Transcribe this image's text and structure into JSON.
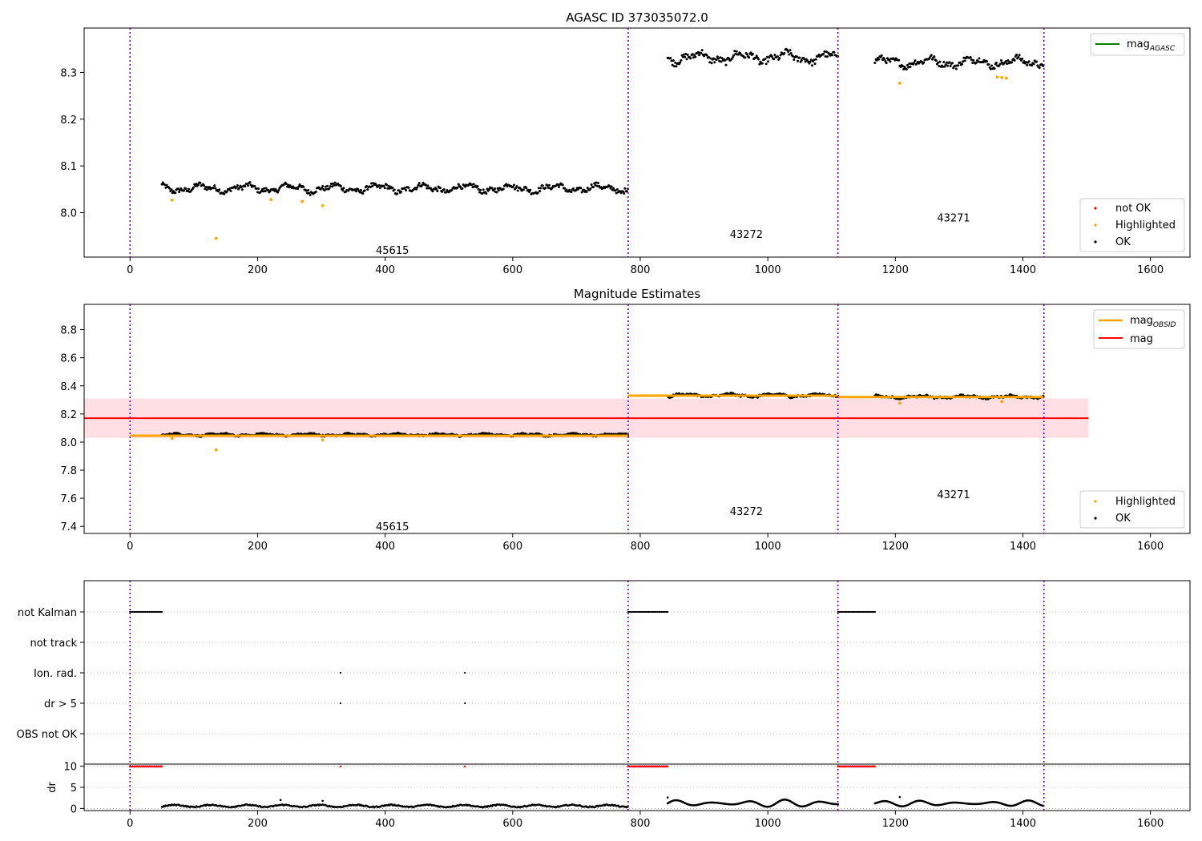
{
  "chart_data": [
    {
      "type": "scatter",
      "title": "AGASC ID 373035072.0",
      "xlabel": "",
      "ylabel": "",
      "xlim": [
        -72,
        1662
      ],
      "ylim": [
        7.905,
        8.395
      ],
      "xticks": [
        0,
        200,
        400,
        600,
        800,
        1000,
        1200,
        1400,
        1600
      ],
      "yticks": [
        8.0,
        8.1,
        8.2,
        8.3
      ],
      "grid": false,
      "vlines": [
        0,
        781,
        1110,
        1433
      ],
      "obsid_labels": [
        {
          "text": "45615",
          "x": 390,
          "y": 7.92
        },
        {
          "text": "43272",
          "x": 945,
          "y": 7.955
        },
        {
          "text": "43271",
          "x": 1270,
          "y": 7.99
        }
      ],
      "series": [
        {
          "name": "mag_AGASC",
          "color": "#008000",
          "kind": "line",
          "values": []
        },
        {
          "name": "not OK",
          "color": "#ff0000",
          "kind": "points",
          "values": []
        },
        {
          "name": "Highlighted",
          "color": "#ffa500",
          "kind": "points",
          "values": [
            [
              66,
              8.027
            ],
            [
              135,
              7.945
            ],
            [
              221,
              8.028
            ],
            [
              270,
              8.024
            ],
            [
              302,
              8.015
            ],
            [
              1207,
              8.277
            ],
            [
              1360,
              8.29
            ],
            [
              1367,
              8.289
            ],
            [
              1374,
              8.288
            ]
          ]
        },
        {
          "name": "OK",
          "color": "#000000",
          "kind": "points",
          "segments": [
            {
              "x0": 50,
              "x1": 781,
              "base": 8.052,
              "amp": 0.011
            },
            {
              "x0": 843,
              "x1": 1110,
              "base": 8.332,
              "amp": 0.015
            },
            {
              "x0": 1168,
              "x1": 1433,
              "base": 8.322,
              "amp": 0.013
            }
          ]
        }
      ],
      "legend_top": {
        "loc": "upper right",
        "entries": [
          "mag_AGASC"
        ]
      },
      "legend_bottom": {
        "loc": "lower right",
        "entries": [
          "not OK",
          "Highlighted",
          "OK"
        ]
      }
    },
    {
      "type": "scatter",
      "title": "Magnitude Estimates",
      "xlabel": "",
      "ylabel": "",
      "xlim": [
        -72,
        1662
      ],
      "ylim": [
        7.35,
        8.98
      ],
      "xticks": [
        0,
        200,
        400,
        600,
        800,
        1000,
        1200,
        1400,
        1600
      ],
      "yticks": [
        7.4,
        7.6,
        7.8,
        8.0,
        8.2,
        8.4,
        8.6,
        8.8
      ],
      "grid": false,
      "vlines": [
        0,
        781,
        1110,
        1433
      ],
      "mag": {
        "value": 8.17,
        "band": [
          8.03,
          8.31
        ],
        "x_range": [
          0,
          1503
        ],
        "color": "#ff0000"
      },
      "mag_obsid": [
        {
          "x0": 0,
          "x1": 781,
          "y": 8.045
        },
        {
          "x0": 781,
          "x1": 1110,
          "y": 8.33
        },
        {
          "x0": 1110,
          "x1": 1433,
          "y": 8.32
        }
      ],
      "obsid_labels": [
        {
          "text": "45615",
          "x": 390,
          "y": 7.4
        },
        {
          "text": "43272",
          "x": 945,
          "y": 7.51
        },
        {
          "text": "43271",
          "x": 1270,
          "y": 7.63
        }
      ],
      "series": [
        {
          "name": "mag_OBSID",
          "color": "#ffa500",
          "kind": "line"
        },
        {
          "name": "mag",
          "color": "#ff0000",
          "kind": "line"
        },
        {
          "name": "Highlighted",
          "color": "#ffa500",
          "kind": "points",
          "values": [
            [
              66,
              8.027
            ],
            [
              135,
              7.945
            ],
            [
              302,
              8.015
            ],
            [
              1207,
              8.277
            ],
            [
              1367,
              8.289
            ]
          ]
        },
        {
          "name": "OK",
          "color": "#000000",
          "kind": "points",
          "segments": [
            {
              "x0": 50,
              "x1": 781,
              "base": 8.052,
              "amp": 0.011
            },
            {
              "x0": 843,
              "x1": 1110,
              "base": 8.332,
              "amp": 0.015
            },
            {
              "x0": 1168,
              "x1": 1433,
              "base": 8.322,
              "amp": 0.013
            }
          ]
        }
      ],
      "legend_top": {
        "loc": "upper right",
        "entries": [
          "mag_OBSID",
          "mag"
        ]
      },
      "legend_bottom": {
        "loc": "lower right",
        "entries": [
          "Highlighted",
          "OK"
        ]
      }
    },
    {
      "type": "scatter",
      "title": "",
      "xlim": [
        -72,
        1662
      ],
      "xticks": [
        0,
        200,
        400,
        600,
        800,
        1000,
        1200,
        1400,
        1600
      ],
      "vlines": [
        0,
        781,
        1110,
        1433
      ],
      "flag_rows": [
        "not Kalman",
        "not track",
        "Ion. rad.",
        "dr > 5",
        "OBS not OK"
      ],
      "flags": {
        "not Kalman": [
          [
            0,
            50
          ],
          [
            781,
            843
          ],
          [
            1110,
            1168
          ]
        ],
        "not track": [],
        "Ion. rad.": [
          [
            330,
            330
          ],
          [
            525,
            525
          ]
        ],
        "dr > 5": [
          [
            330,
            330
          ],
          [
            525,
            525
          ]
        ],
        "OBS not OK": []
      },
      "dr_panel": {
        "ylabel": "dr",
        "ylim": [
          -0.5,
          10.5
        ],
        "yticks": [
          0,
          5,
          10
        ],
        "clipped_markers": [
          [
            0,
            50
          ],
          [
            330,
            330
          ],
          [
            525,
            525
          ],
          [
            781,
            843
          ],
          [
            1110,
            1168
          ]
        ],
        "clipped_value": 10,
        "segments": [
          {
            "x0": 50,
            "x1": 781,
            "base": 0.6,
            "amp": 0.25
          },
          {
            "x0": 843,
            "x1": 1110,
            "base": 1.2,
            "amp": 0.9
          },
          {
            "x0": 1168,
            "x1": 1433,
            "base": 1.2,
            "amp": 0.7
          }
        ],
        "outliers": [
          [
            236,
            2.0
          ],
          [
            302,
            1.8
          ],
          [
            843,
            2.6
          ],
          [
            1207,
            2.7
          ]
        ]
      }
    }
  ]
}
